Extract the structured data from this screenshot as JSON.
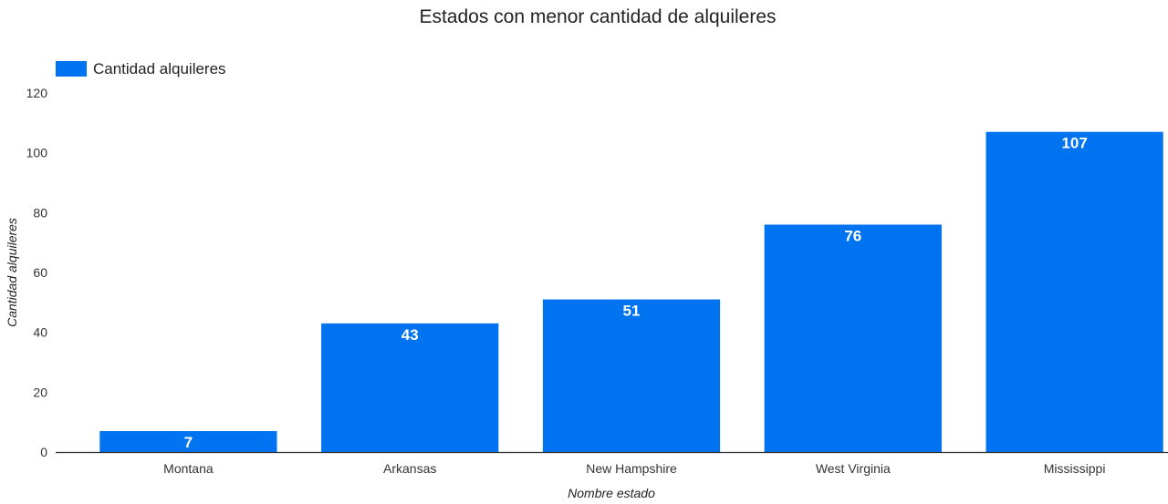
{
  "chart_data": {
    "type": "bar",
    "title": "Estados con menor cantidad de alquileres",
    "xlabel": "Nombre estado",
    "ylabel": "Cantidad alquileres",
    "categories": [
      "Montana",
      "Arkansas",
      "New Hampshire",
      "West Virginia",
      "Mississippi"
    ],
    "series": [
      {
        "name": "Cantidad alquileres",
        "values": [
          7,
          43,
          51,
          76,
          107
        ]
      }
    ],
    "value_labels": [
      "7",
      "43",
      "51",
      "76",
      "107"
    ],
    "ylim": [
      0,
      120
    ],
    "yticks": [
      "0",
      "20",
      "40",
      "60",
      "80",
      "100",
      "120"
    ],
    "grid": false,
    "legend_position": "top-left",
    "colors": {
      "bar": "#0073f0",
      "axis": "#333333"
    }
  }
}
